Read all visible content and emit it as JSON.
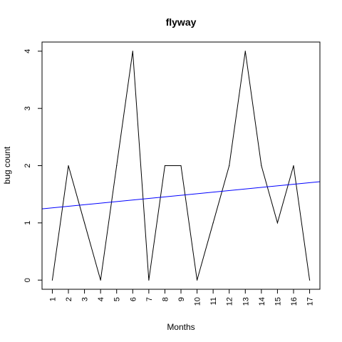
{
  "chart_data": {
    "type": "line",
    "title": "flyway",
    "xlabel": "Months",
    "ylabel": "bug count",
    "x": [
      1,
      2,
      3,
      4,
      5,
      6,
      7,
      8,
      9,
      10,
      11,
      12,
      13,
      14,
      15,
      16,
      17
    ],
    "x_tick_labels": [
      "1",
      "2",
      "3",
      "4",
      "5",
      "6",
      "7",
      "8",
      "9",
      "10",
      "11",
      "12",
      "13",
      "14",
      "15",
      "16",
      "17"
    ],
    "y_ticks": [
      0,
      1,
      2,
      3,
      4
    ],
    "y_tick_labels": [
      "0",
      "1",
      "2",
      "3",
      "4"
    ],
    "xlim": [
      0.36,
      17.64
    ],
    "ylim": [
      -0.16,
      4.16
    ],
    "grid": false,
    "legend": "none",
    "series": [
      {
        "values": [
          0,
          2,
          1,
          0,
          2,
          4,
          0,
          2,
          2,
          0,
          1,
          2,
          4,
          2,
          1,
          2,
          0
        ],
        "color": "#000000"
      }
    ],
    "trend_line": {
      "intercept": 1.235,
      "slope": 0.0275,
      "color": "#0000ff"
    }
  }
}
